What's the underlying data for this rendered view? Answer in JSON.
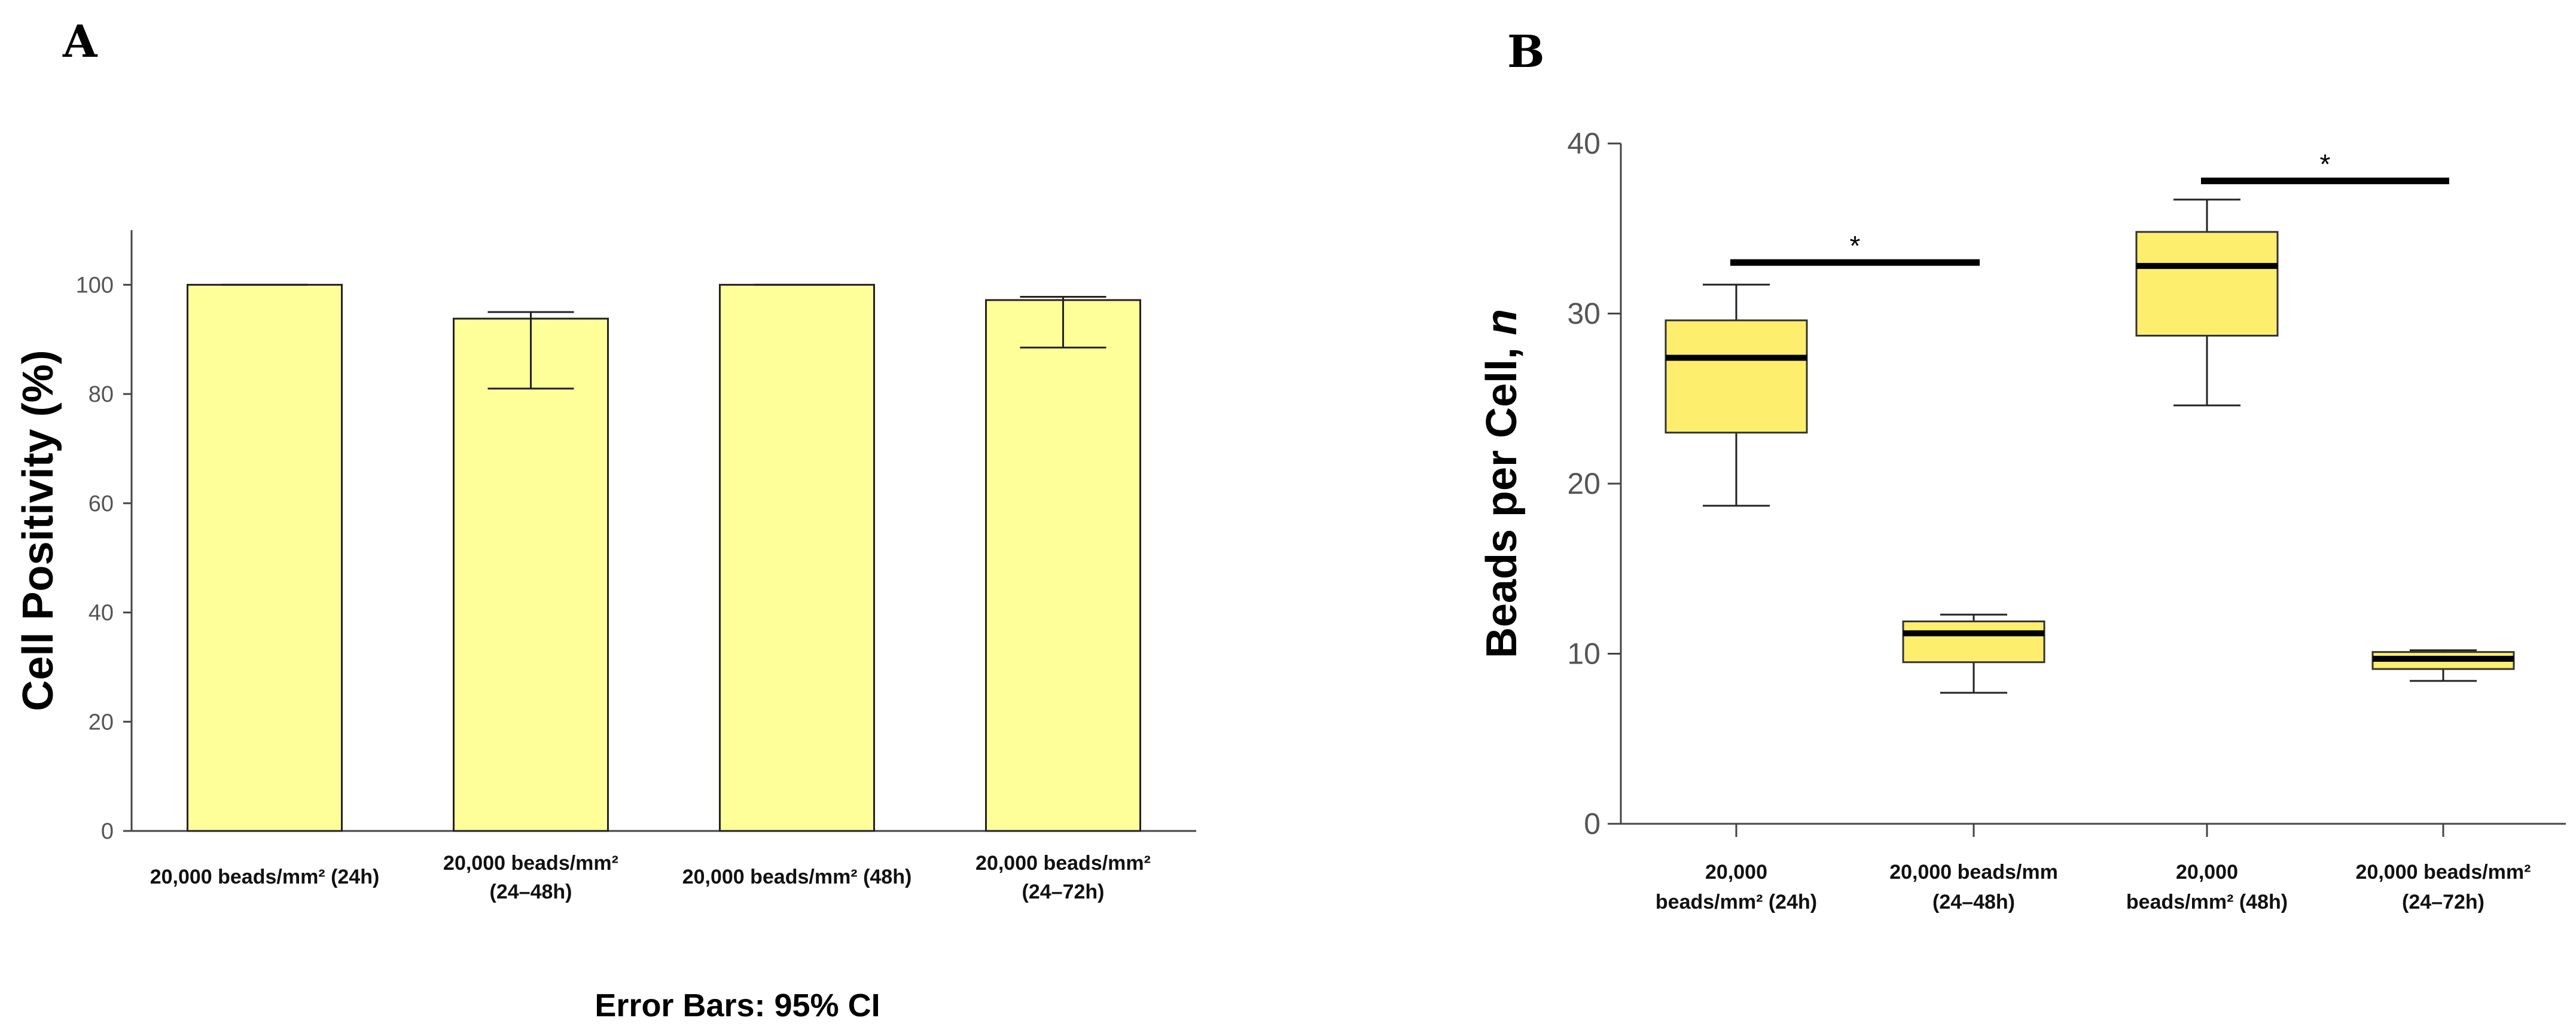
{
  "chart_data": [
    {
      "panel": "A",
      "type": "bar",
      "ylabel": "Cell Positivity (%)",
      "xlabel": "",
      "ylim": [
        0,
        110
      ],
      "yticks": [
        "0",
        "20",
        "40",
        "60",
        "80",
        "100"
      ],
      "categories": [
        {
          "lines": [
            "20,000 beads/mm² (24h)"
          ]
        },
        {
          "lines": [
            "20,000 beads/mm²",
            "(24–48h)"
          ]
        },
        {
          "lines": [
            "20,000 beads/mm² (48h)"
          ]
        },
        {
          "lines": [
            "20,000 beads/mm²",
            "(24–72h)"
          ]
        }
      ],
      "values": [
        100,
        93.8,
        100,
        97.2
      ],
      "ci_low": [
        100,
        81,
        100,
        88.5
      ],
      "ci_high": [
        100,
        95,
        100,
        97.8
      ],
      "bar_color": "#ffff99",
      "note": "Error Bars: 95% CI"
    },
    {
      "panel": "B",
      "type": "box",
      "ylabel_main": "Beads per Cell, ",
      "ylabel_italic": "n",
      "ylim": [
        0,
        40
      ],
      "yticks": [
        "0",
        "10",
        "20",
        "30",
        "40"
      ],
      "categories": [
        {
          "lines": [
            "20,000",
            "beads/mm² (24h)"
          ]
        },
        {
          "lines": [
            "20,000 beads/mm",
            "(24–48h)"
          ]
        },
        {
          "lines": [
            "20,000",
            "beads/mm² (48h)"
          ]
        },
        {
          "lines": [
            "20,000 beads/mm²",
            "(24–72h)"
          ]
        }
      ],
      "boxes": [
        {
          "min": 18.7,
          "q1": 23.0,
          "median": 27.4,
          "q3": 29.6,
          "max": 31.7
        },
        {
          "min": 7.7,
          "q1": 9.5,
          "median": 11.2,
          "q3": 11.9,
          "max": 12.3
        },
        {
          "min": 24.6,
          "q1": 28.7,
          "median": 32.8,
          "q3": 34.8,
          "max": 36.7
        },
        {
          "min": 8.4,
          "q1": 9.1,
          "median": 9.7,
          "q3": 10.1,
          "max": 10.2
        }
      ],
      "significance": [
        {
          "from": 0,
          "to": 1,
          "y": 33.0,
          "label": "*"
        },
        {
          "from": 2,
          "to": 3,
          "y": 37.8,
          "label": "*"
        }
      ],
      "box_color": "#fdee6e"
    }
  ]
}
